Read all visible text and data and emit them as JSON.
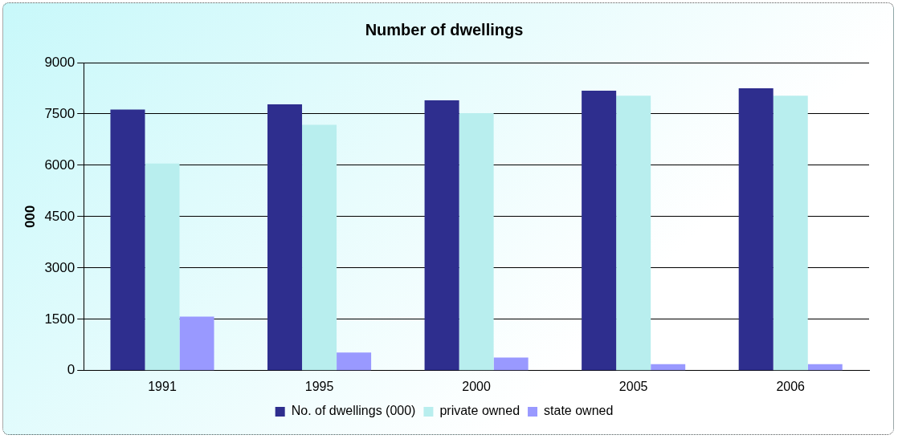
{
  "chart_data": {
    "type": "bar",
    "title": "Number of dwellings",
    "ylabel": "000",
    "categories": [
      "1991",
      "1995",
      "2000",
      "2005",
      "2006"
    ],
    "series": [
      {
        "name": "No. of dwellings (000)",
        "color": "#2e2e8e",
        "values": [
          7630,
          7780,
          7900,
          8180,
          8250
        ]
      },
      {
        "name": "private owned",
        "color": "#b8eeee",
        "values": [
          6050,
          7180,
          7520,
          8030,
          8030
        ]
      },
      {
        "name": "state owned",
        "color": "#9999ff",
        "values": [
          1580,
          530,
          380,
          190,
          190
        ]
      }
    ],
    "ylim": [
      0,
      9000
    ],
    "yticks": [
      0,
      1500,
      3000,
      4500,
      6000,
      7500,
      9000
    ],
    "grid": "y",
    "legend": "bottom"
  }
}
